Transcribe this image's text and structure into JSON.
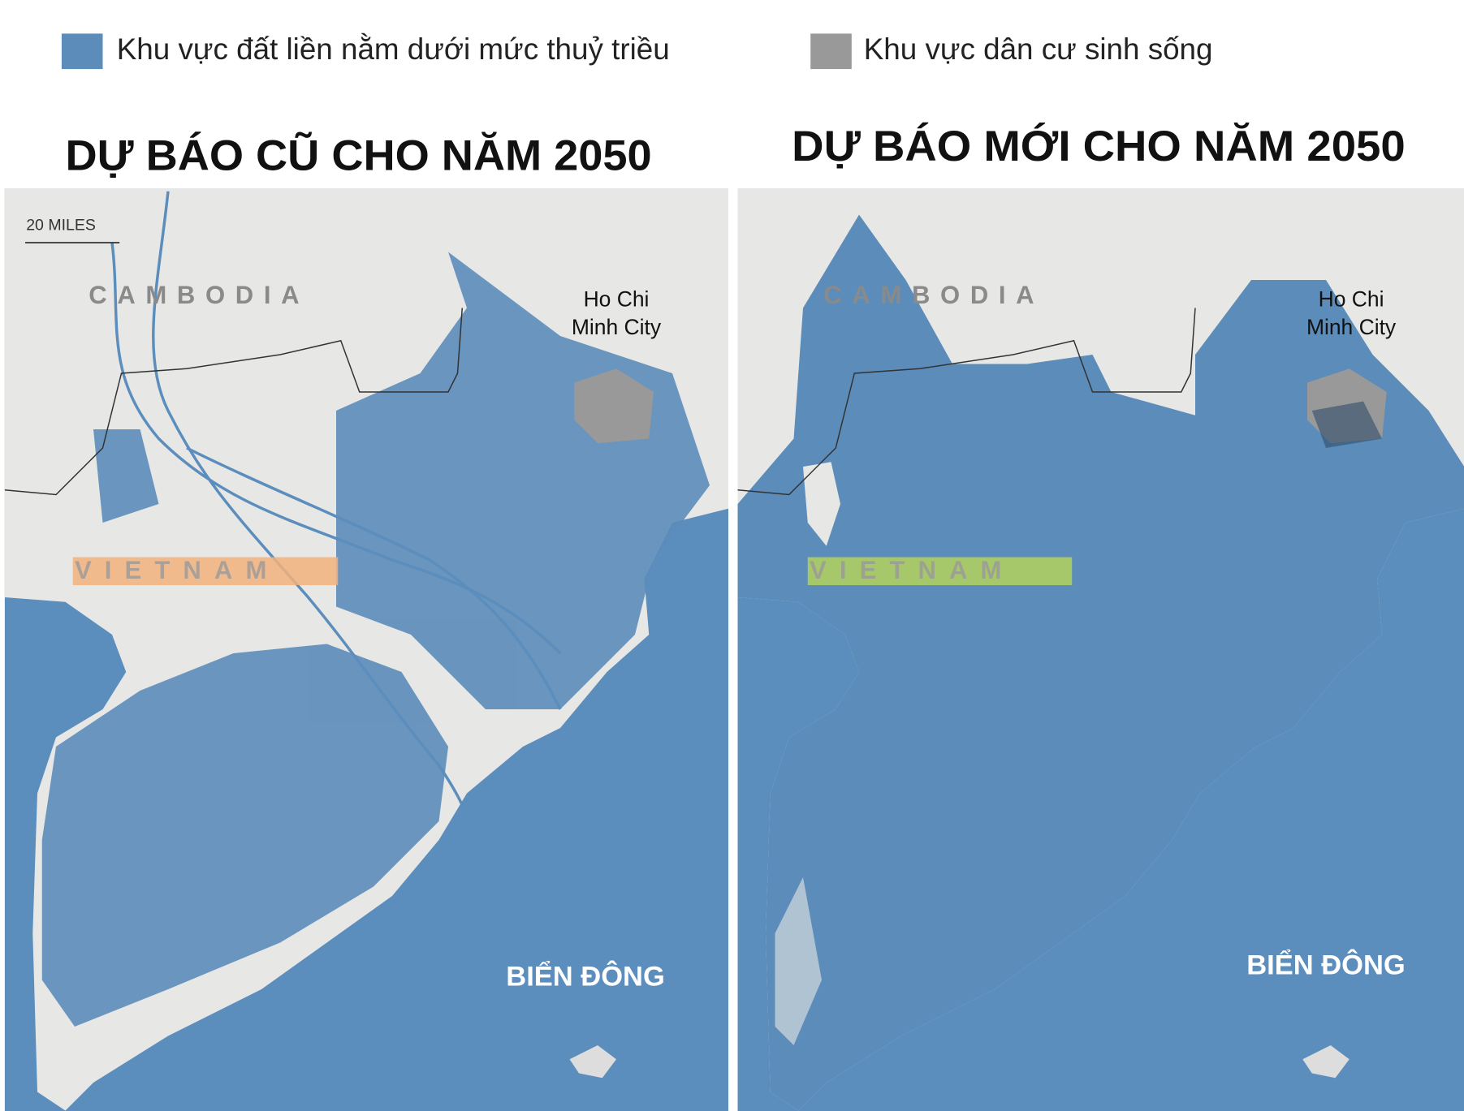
{
  "legend": [
    {
      "label": "Khu vực đất liền nằm dưới mức thuỷ triều",
      "color": "#5b8cba"
    },
    {
      "label": "Khu vực dân cư sinh sống",
      "color": "#999999"
    }
  ],
  "maps": [
    {
      "title": "DỰ BÁO CŨ CHO NĂM 2050",
      "scale_label": "20 MILES",
      "country_north": "CAMBODIA",
      "city": [
        "Ho Chi",
        "Minh City"
      ],
      "country_south": "VIETNAM",
      "sea": "BIỂN ĐÔNG"
    },
    {
      "title": "DỰ BÁO MỚI CHO NĂM 2050",
      "country_north": "CAMBODIA",
      "city": [
        "Ho Chi",
        "Minh City"
      ],
      "country_south": "VIETNAM",
      "sea": "BIỂN ĐÔNG"
    }
  ]
}
